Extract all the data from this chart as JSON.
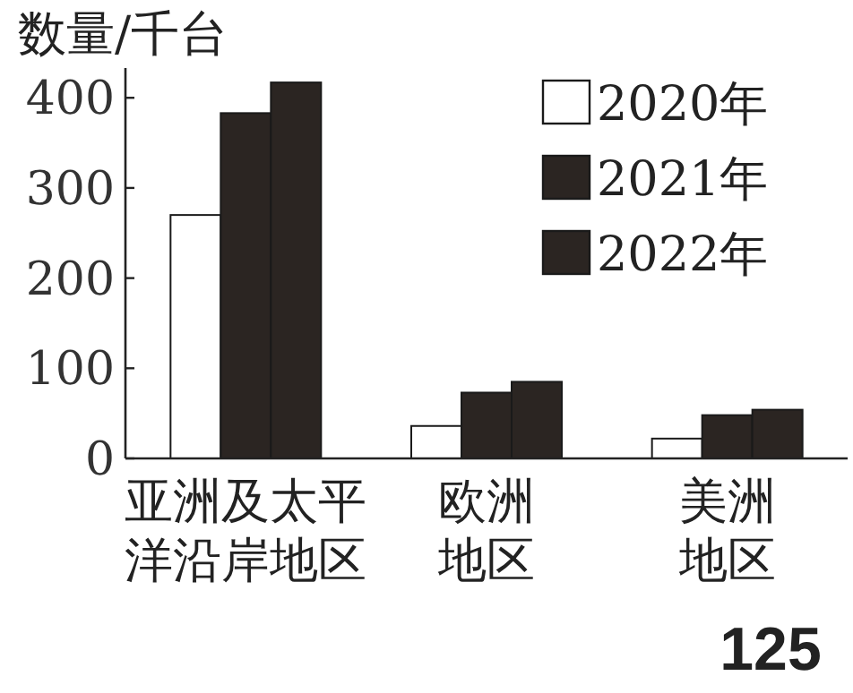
{
  "chart_data": {
    "type": "bar",
    "ylabel": "数量/千台",
    "categories": [
      "亚洲及太平洋沿岸地区",
      "欧洲地区",
      "美洲地区"
    ],
    "series": [
      {
        "name": "2020年",
        "color": "#ffffff",
        "values": [
          270,
          36,
          22
        ]
      },
      {
        "name": "2021年",
        "color": "#2b2522",
        "values": [
          383,
          73,
          48
        ]
      },
      {
        "name": "2022年",
        "color": "#2b2522",
        "values": [
          417,
          85,
          54
        ]
      }
    ],
    "ylim": [
      0,
      433
    ],
    "yticks": [
      0,
      100,
      200,
      300,
      400
    ],
    "grid": false,
    "legend": "top right",
    "annotations": [
      "125"
    ]
  }
}
